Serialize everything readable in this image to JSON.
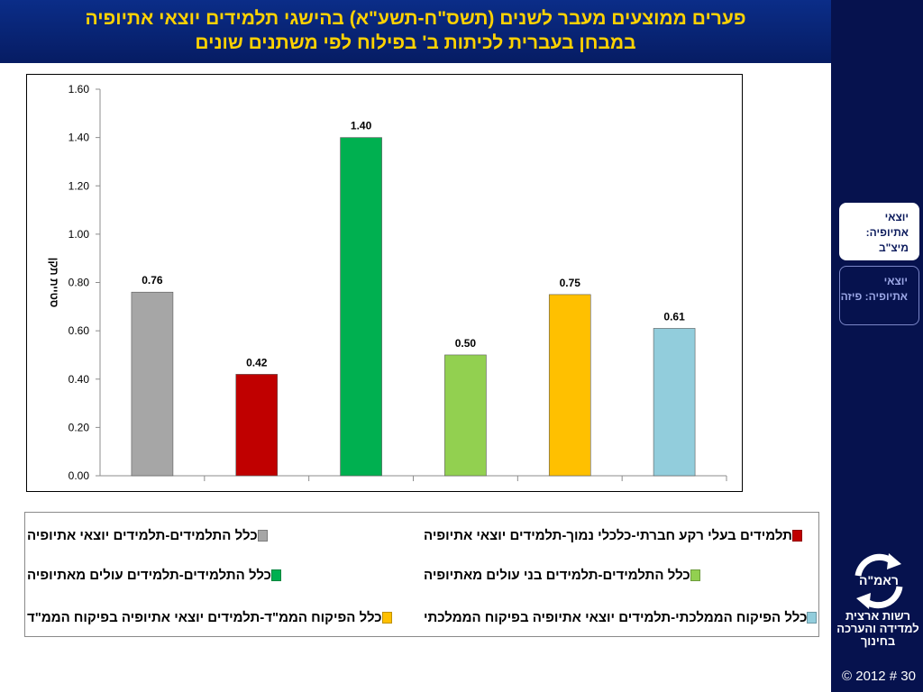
{
  "title": {
    "line1": "פערים ממוצעים מעבר לשנים (תשס\"ח-תשע\"א) בהישגי תלמידים יוצאי אתיופיה",
    "line2": "במבחן בעברית לכיתות ב' בפילוח לפי משתנים שונים"
  },
  "nav": {
    "active_label": "יוצאי אתיופיה: מיצ\"ב",
    "inactive_label": "יוצאי אתיופיה: פיזה"
  },
  "brand": {
    "logo_text": "ראמ\"ה",
    "org_name": "רשות ארצית למדידה והערכה בחינוך",
    "footer": "© 2012 # 30"
  },
  "colors": {
    "title_bg": "#0b2d88",
    "title_text": "#ffd200",
    "panel_bg": "#06124e"
  },
  "chart_data": {
    "type": "bar",
    "ylabel": "סטיית תקן",
    "ylim": [
      0,
      1.6
    ],
    "yticks": [
      "0.00",
      "0.20",
      "0.40",
      "0.60",
      "0.80",
      "1.00",
      "1.20",
      "1.40",
      "1.60"
    ],
    "grid": false,
    "series": [
      {
        "name": "כלל התלמידים-תלמידים יוצאי אתיופיה",
        "value": 0.76,
        "label": "0.76",
        "color": "#a6a6a6"
      },
      {
        "name": "תלמידים בעלי רקע חברתי-כלכלי נמוך-תלמידים יוצאי אתיופיה",
        "value": 0.42,
        "label": "0.42",
        "color": "#c00000"
      },
      {
        "name": "כלל התלמידים-תלמידים עולים מאתיופיה",
        "value": 1.4,
        "label": "1.40",
        "color": "#00b050"
      },
      {
        "name": "כלל התלמידים-תלמידים בני עולים מאתיופיה",
        "value": 0.5,
        "label": "0.50",
        "color": "#92d050"
      },
      {
        "name": "כלל הפיקוח הממ\"ד-תלמידים יוצאי אתיופיה בפיקוח הממ\"ד",
        "value": 0.75,
        "label": "0.75",
        "color": "#ffc000"
      },
      {
        "name": "כלל הפיקוח הממלכתי-תלמידים יוצאי אתיופיה בפיקוח הממלכתי",
        "value": 0.61,
        "label": "0.61",
        "color": "#92cddc"
      }
    ]
  }
}
